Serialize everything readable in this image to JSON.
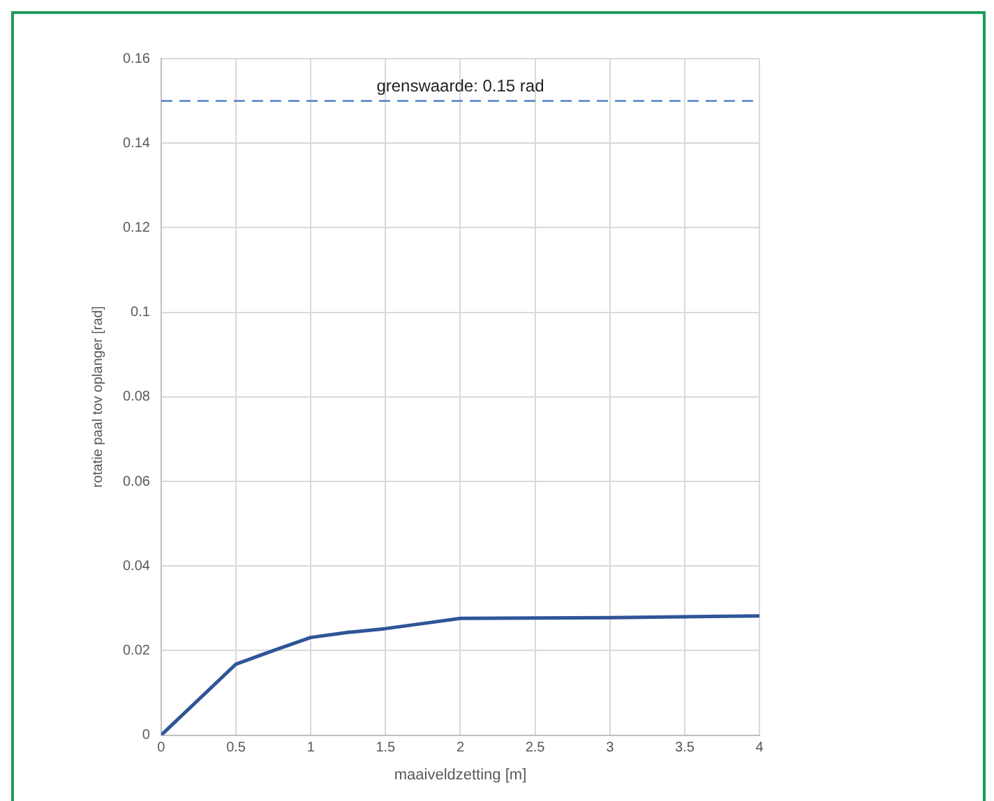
{
  "chart_data": {
    "type": "line",
    "xlabel": "maaiveldzetting [m]",
    "ylabel": "rotatie paal tov oplanger [rad]",
    "x": [
      0,
      0.5,
      0.75,
      1,
      1.25,
      1.5,
      1.75,
      2,
      3,
      4
    ],
    "series": [
      {
        "color": "#2f5597",
        "values": [
          0,
          0.0168,
          0.02,
          0.0231,
          0.0243,
          0.0252,
          0.0264,
          0.0276,
          0.0278,
          0.0282
        ]
      }
    ],
    "xlim": [
      0,
      4
    ],
    "xticks": [
      0,
      0.5,
      1,
      1.5,
      2,
      2.5,
      3,
      3.5,
      4
    ],
    "ylim": [
      0,
      0.16
    ],
    "yticks": [
      0,
      0.02,
      0.04,
      0.06,
      0.08,
      0.1,
      0.12,
      0.14,
      0.16
    ],
    "ref_lines": [
      {
        "axis": "y",
        "value": 0.15,
        "label": "grenswaarde: 0.15 rad",
        "color": "#4472c4",
        "line_style": "dashed"
      }
    ],
    "grid": true,
    "legend": false,
    "marker": "none",
    "line_style": "solid"
  }
}
